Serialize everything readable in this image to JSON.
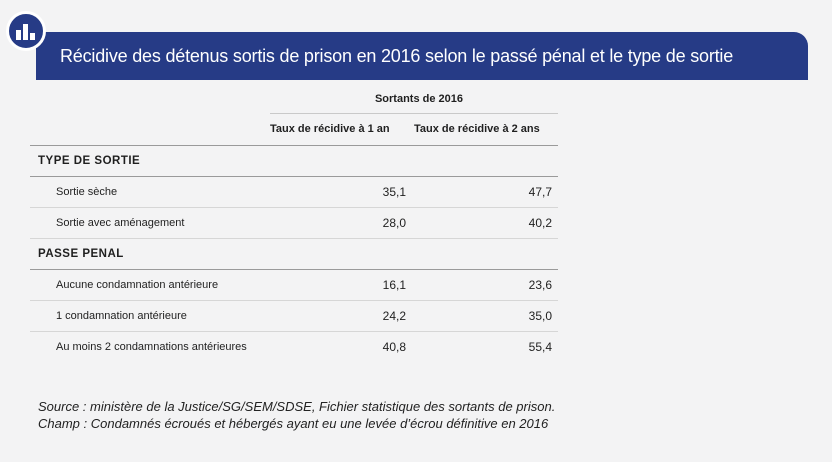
{
  "header": {
    "title": "Récidive des détenus sortis de prison en 2016 selon le passé pénal et le type de sortie"
  },
  "table": {
    "group_label": "Sortants de 2016",
    "columns": [
      "Taux de récidive à 1 an",
      "Taux de récidive à 2 ans"
    ],
    "sections": [
      {
        "title": "TYPE DE SORTIE",
        "rows": [
          {
            "label": "Sortie sèche",
            "v1": "35,1",
            "v2": "47,7"
          },
          {
            "label": "Sortie avec aménagement",
            "v1": "28,0",
            "v2": "40,2"
          }
        ]
      },
      {
        "title": "PASSE PENAL",
        "rows": [
          {
            "label": "Aucune condamnation antérieure",
            "v1": "16,1",
            "v2": "23,6"
          },
          {
            "label": "1 condamnation antérieure",
            "v1": "24,2",
            "v2": "35,0"
          },
          {
            "label": "Au moins 2 condamnations antérieures",
            "v1": "40,8",
            "v2": "55,4"
          }
        ]
      }
    ]
  },
  "notes": {
    "source": "Source : ministère de la Justice/SG/SEM/SDSE, Fichier statistique des sortants de prison.",
    "champ": "Champ : Condamnés écroués et hébergés ayant eu une levée d’écrou définitive en 2016"
  },
  "icons": {
    "badge": "bar-chart-icon"
  },
  "colors": {
    "banner": "#263b86",
    "background": "#f3f3f4"
  }
}
